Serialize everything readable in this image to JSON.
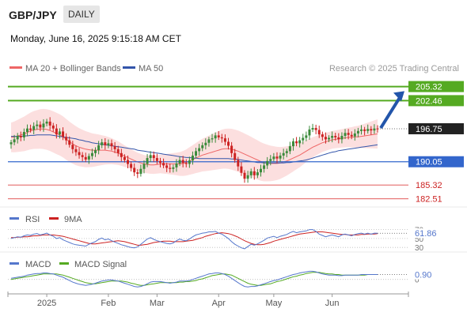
{
  "header": {
    "symbol": "GBP/JPY",
    "interval": "DAILY",
    "datetime": "Monday, June 16, 2025 9:15:18 AM CET"
  },
  "legend": {
    "ma20_label": "MA 20 + Bollinger Bands",
    "ma50_label": "MA 50",
    "credit": "Research © 2025 Trading Central"
  },
  "colors": {
    "ma20": "#ee6666",
    "ma50": "#3355aa",
    "bollinger_fill": "#fcd9d9",
    "bull": "#3a8a3a",
    "bear": "#cc2222",
    "resistance": "#55aa22",
    "support": "#3366cc",
    "support_minor": "#dd4444",
    "rsi": "#5577cc",
    "rsi_ma": "#cc2222",
    "macd": "#5577cc",
    "macd_signal": "#55aa22",
    "arrow": "#2255aa",
    "current_price_bg": "#222222"
  },
  "chart_data": [
    {
      "type": "candlestick",
      "panel": "price",
      "x_tick_labels": [
        "2025",
        "Feb",
        "Mar",
        "Apr",
        "May",
        "Jun"
      ],
      "price_levels": [
        {
          "label": "205.32",
          "value": 205.32,
          "role": "resistance"
        },
        {
          "label": "202.46",
          "value": 202.46,
          "role": "resistance"
        },
        {
          "label": "196.75",
          "value": 196.75,
          "role": "current"
        },
        {
          "label": "190.05",
          "value": 190.05,
          "role": "support"
        },
        {
          "label": "185.32",
          "value": 185.32,
          "role": "support_minor"
        },
        {
          "label": "182.51",
          "value": 182.51,
          "role": "support_minor"
        }
      ],
      "ylim": [
        181.5,
        207.5
      ],
      "series": [
        {
          "name": "MA 20 + Bollinger Bands"
        },
        {
          "name": "MA 50"
        }
      ],
      "close": [
        194.0,
        194.6,
        195.3,
        195.0,
        196.1,
        196.8,
        196.5,
        197.3,
        197.6,
        197.0,
        197.8,
        198.2,
        197.4,
        196.8,
        195.6,
        196.2,
        195.1,
        194.4,
        193.5,
        192.6,
        192.0,
        191.4,
        191.0,
        190.5,
        191.2,
        191.8,
        192.4,
        193.4,
        194.0,
        193.4,
        193.8,
        193.2,
        192.6,
        191.8,
        191.0,
        190.4,
        189.6,
        188.8,
        187.9,
        187.6,
        188.6,
        189.6,
        190.8,
        191.4,
        190.8,
        190.2,
        189.8,
        189.3,
        188.8,
        188.6,
        188.9,
        189.7,
        190.4,
        189.8,
        189.6,
        190.3,
        191.3,
        192.2,
        192.8,
        193.4,
        193.9,
        194.6,
        194.8,
        195.4,
        195.0,
        194.8,
        194.1,
        193.3,
        191.8,
        190.4,
        189.1,
        187.8,
        186.6,
        187.3,
        188.1,
        187.3,
        187.9,
        188.6,
        189.3,
        190.2,
        190.6,
        191.1,
        190.7,
        191.3,
        191.8,
        192.2,
        193.2,
        194.2,
        193.8,
        194.4,
        194.9,
        195.4,
        196.6,
        196.9,
        196.5,
        195.6,
        195.1,
        194.6,
        194.9,
        195.3,
        195.0,
        194.6,
        195.3,
        195.9,
        195.5,
        195.2,
        195.8,
        196.3,
        196.6,
        196.3,
        196.7,
        196.4,
        196.8,
        196.75
      ],
      "ma20": [
        195.0,
        195.1,
        195.3,
        195.5,
        195.7,
        196.0,
        196.3,
        196.5,
        196.6,
        196.7,
        196.7,
        196.6,
        196.4,
        196.1,
        195.8,
        195.5,
        195.1,
        194.6,
        194.1,
        193.7,
        193.3,
        193.0,
        192.8,
        192.6,
        192.5,
        192.4,
        192.4,
        192.4,
        192.4,
        192.4,
        192.3,
        192.2,
        192.0,
        191.8,
        191.5,
        191.2,
        190.9,
        190.6,
        190.3,
        190.0,
        189.8,
        189.6,
        189.5,
        189.4,
        189.4,
        189.5,
        189.6,
        189.6,
        189.6,
        189.6,
        189.6,
        189.6,
        189.6,
        189.7,
        189.9,
        190.2,
        190.5,
        190.8,
        191.1,
        191.4,
        191.6,
        191.8,
        192.0,
        192.2,
        192.4,
        192.6,
        192.7,
        192.7,
        192.6,
        192.4,
        192.2,
        191.9,
        191.6,
        191.3,
        191.0,
        190.7,
        190.4,
        190.1,
        189.9,
        189.8,
        189.7,
        189.7,
        189.7,
        189.8,
        190.0,
        190.2,
        190.5,
        190.8,
        191.1,
        191.4,
        191.8,
        192.2,
        192.6,
        193.0,
        193.3,
        193.6,
        193.9,
        194.1,
        194.3,
        194.5,
        194.6,
        194.7,
        194.8,
        194.9,
        195.0,
        195.0,
        195.1,
        195.1,
        195.2,
        195.3,
        195.4,
        195.5,
        195.6,
        195.7
      ],
      "ma50": [
        195.2,
        195.2,
        195.2,
        195.2,
        195.3,
        195.3,
        195.4,
        195.4,
        195.5,
        195.5,
        195.5,
        195.5,
        195.5,
        195.4,
        195.3,
        195.2,
        195.1,
        195.0,
        194.9,
        194.8,
        194.7,
        194.5,
        194.4,
        194.2,
        194.1,
        193.9,
        193.8,
        193.7,
        193.6,
        193.5,
        193.4,
        193.3,
        193.2,
        193.1,
        193.0,
        192.9,
        192.8,
        192.7,
        192.6,
        192.4,
        192.3,
        192.2,
        192.1,
        192.0,
        191.9,
        191.8,
        191.7,
        191.6,
        191.5,
        191.4,
        191.3,
        191.2,
        191.1,
        191.0,
        190.9,
        190.9,
        190.8,
        190.8,
        190.7,
        190.7,
        190.7,
        190.7,
        190.7,
        190.7,
        190.7,
        190.7,
        190.7,
        190.7,
        190.6,
        190.6,
        190.5,
        190.4,
        190.3,
        190.2,
        190.1,
        190.0,
        189.9,
        189.9,
        189.8,
        189.8,
        189.8,
        189.8,
        189.8,
        189.8,
        189.8,
        189.9,
        189.9,
        190.0,
        190.1,
        190.2,
        190.3,
        190.4,
        190.6,
        190.8,
        191.0,
        191.2,
        191.4,
        191.6,
        191.8,
        192.0,
        192.1,
        192.3,
        192.4,
        192.5,
        192.6,
        192.7,
        192.8,
        192.9,
        193.0,
        193.1,
        193.2,
        193.3,
        193.4,
        193.5
      ]
    },
    {
      "type": "line",
      "panel": "rsi",
      "series_labels": {
        "rsi": "RSI",
        "ma": "9MA"
      },
      "value_label": "61.86",
      "ylim": [
        25,
        80
      ],
      "tick_labels": [
        "70",
        "50",
        "30"
      ],
      "tick_values": [
        70,
        50,
        30
      ],
      "rsi": [
        50,
        52,
        54,
        53,
        56,
        58,
        57,
        60,
        61,
        58,
        60,
        62,
        58,
        55,
        50,
        52,
        47,
        44,
        41,
        38,
        36,
        35,
        34,
        33,
        37,
        40,
        43,
        48,
        51,
        47,
        49,
        45,
        42,
        39,
        36,
        34,
        32,
        30,
        29,
        31,
        37,
        43,
        49,
        52,
        48,
        45,
        43,
        41,
        39,
        38,
        40,
        45,
        49,
        46,
        45,
        49,
        54,
        58,
        60,
        62,
        63,
        65,
        65,
        66,
        62,
        60,
        55,
        50,
        43,
        37,
        33,
        29,
        27,
        32,
        37,
        35,
        38,
        42,
        46,
        51,
        53,
        55,
        52,
        55,
        57,
        59,
        63,
        66,
        63,
        65,
        66,
        67,
        70,
        70,
        66,
        60,
        57,
        54,
        56,
        58,
        56,
        54,
        58,
        60,
        58,
        56,
        59,
        61,
        62,
        60,
        62,
        60,
        62,
        61.86
      ],
      "rsi_ma": [
        52,
        52,
        53,
        53,
        54,
        54,
        55,
        56,
        56,
        57,
        58,
        58,
        58,
        58,
        57,
        56,
        55,
        53,
        51,
        49,
        47,
        45,
        43,
        41,
        39,
        38,
        38,
        39,
        40,
        41,
        42,
        43,
        44,
        45,
        44,
        43,
        41,
        39,
        37,
        35,
        35,
        36,
        37,
        39,
        41,
        42,
        43,
        44,
        44,
        44,
        43,
        43,
        43,
        43,
        44,
        45,
        46,
        48,
        50,
        52,
        55,
        57,
        59,
        61,
        62,
        63,
        62,
        61,
        59,
        56,
        53,
        49,
        45,
        42,
        39,
        37,
        36,
        36,
        37,
        39,
        41,
        44,
        46,
        48,
        50,
        52,
        54,
        56,
        58,
        60,
        61,
        62,
        63,
        64,
        65,
        65,
        65,
        64,
        63,
        62,
        61,
        60,
        59,
        59,
        58,
        58,
        58,
        58,
        59,
        59,
        60,
        60,
        60,
        61
      ]
    },
    {
      "type": "line",
      "panel": "macd",
      "series_labels": {
        "macd": "MACD",
        "signal": "MACD Signal"
      },
      "value_label": "0.90",
      "ylim": [
        -1.8,
        2.0
      ],
      "tick_labels": [
        "0"
      ],
      "tick_values": [
        0
      ],
      "macd": [
        0.2,
        0.3,
        0.4,
        0.5,
        0.6,
        0.8,
        0.9,
        1.0,
        1.1,
        1.1,
        1.2,
        1.2,
        1.1,
        1.0,
        0.8,
        0.6,
        0.4,
        0.1,
        -0.2,
        -0.5,
        -0.7,
        -0.9,
        -1.0,
        -1.1,
        -1.0,
        -0.9,
        -0.7,
        -0.5,
        -0.3,
        -0.2,
        -0.1,
        -0.1,
        -0.2,
        -0.3,
        -0.5,
        -0.7,
        -0.9,
        -1.1,
        -1.3,
        -1.4,
        -1.3,
        -1.1,
        -0.8,
        -0.5,
        -0.4,
        -0.4,
        -0.4,
        -0.5,
        -0.6,
        -0.7,
        -0.6,
        -0.5,
        -0.3,
        -0.3,
        -0.3,
        -0.2,
        0.0,
        0.2,
        0.4,
        0.6,
        0.8,
        1.0,
        1.1,
        1.2,
        1.2,
        1.1,
        0.9,
        0.6,
        0.2,
        -0.2,
        -0.6,
        -1.0,
        -1.3,
        -1.4,
        -1.3,
        -1.3,
        -1.2,
        -1.0,
        -0.8,
        -0.6,
        -0.4,
        -0.2,
        -0.1,
        0.1,
        0.3,
        0.5,
        0.7,
        0.9,
        1.0,
        1.2,
        1.3,
        1.4,
        1.5,
        1.5,
        1.4,
        1.2,
        1.0,
        0.9,
        0.8,
        0.8,
        0.8,
        0.7,
        0.7,
        0.8,
        0.8,
        0.8,
        0.8,
        0.8,
        0.9,
        0.9,
        0.9,
        0.9,
        0.9,
        0.9
      ],
      "signal": [
        0.0,
        0.1,
        0.2,
        0.3,
        0.4,
        0.5,
        0.6,
        0.7,
        0.8,
        0.9,
        1.0,
        1.0,
        1.0,
        1.0,
        1.0,
        0.9,
        0.8,
        0.6,
        0.4,
        0.2,
        0.0,
        -0.2,
        -0.4,
        -0.6,
        -0.7,
        -0.8,
        -0.8,
        -0.7,
        -0.6,
        -0.5,
        -0.4,
        -0.3,
        -0.3,
        -0.3,
        -0.3,
        -0.4,
        -0.5,
        -0.7,
        -0.8,
        -1.0,
        -1.1,
        -1.1,
        -1.0,
        -0.9,
        -0.8,
        -0.7,
        -0.6,
        -0.6,
        -0.6,
        -0.6,
        -0.6,
        -0.6,
        -0.5,
        -0.5,
        -0.4,
        -0.4,
        -0.3,
        -0.2,
        0.0,
        0.1,
        0.3,
        0.5,
        0.7,
        0.8,
        0.9,
        1.0,
        1.0,
        0.9,
        0.8,
        0.5,
        0.2,
        -0.1,
        -0.4,
        -0.7,
        -0.9,
        -1.0,
        -1.1,
        -1.1,
        -1.0,
        -0.9,
        -0.8,
        -0.6,
        -0.4,
        -0.3,
        -0.1,
        0.1,
        0.3,
        0.5,
        0.6,
        0.8,
        0.9,
        1.1,
        1.2,
        1.3,
        1.3,
        1.3,
        1.2,
        1.1,
        1.0,
        1.0,
        0.9,
        0.9,
        0.8,
        0.8,
        0.8,
        0.8,
        0.8,
        0.8,
        0.8,
        0.8,
        0.9,
        0.9,
        0.9,
        0.9
      ]
    }
  ]
}
